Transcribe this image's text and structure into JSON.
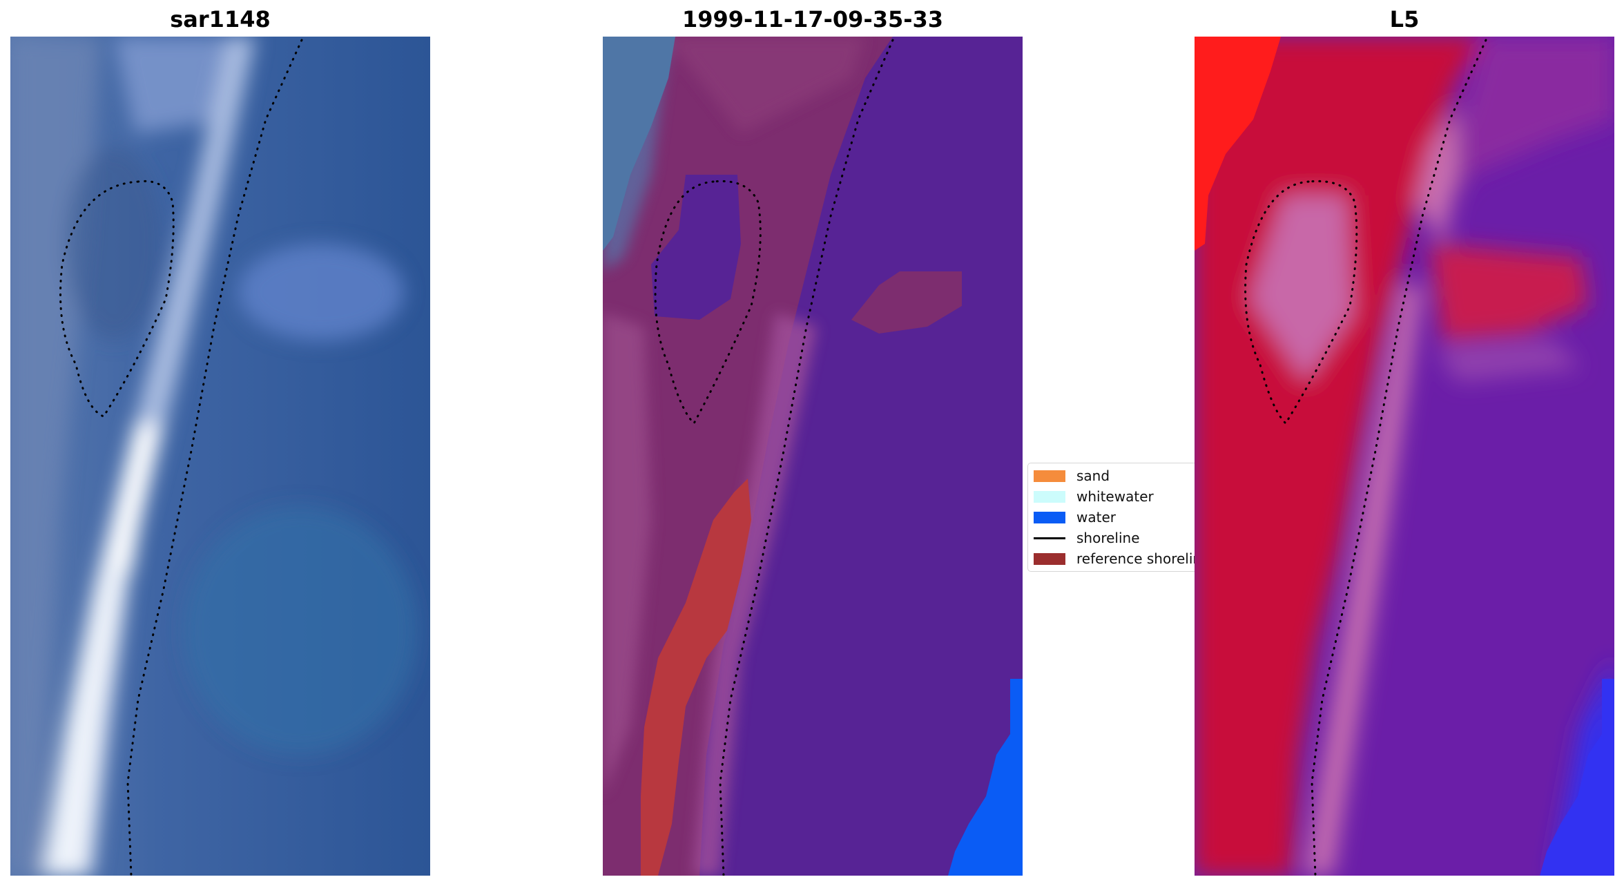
{
  "panels": [
    {
      "title": "sar1148",
      "image": "rgb-satellite-image"
    },
    {
      "title": "1999-11-17-09-35-33",
      "image": "classified-overlay-image"
    },
    {
      "title": "L5",
      "image": "index-heatmap-image"
    }
  ],
  "legend": {
    "entries": [
      {
        "label": "sand",
        "color": "#f58c3c",
        "kind": "patch"
      },
      {
        "label": "whitewater",
        "color": "#ccfcfc",
        "kind": "patch"
      },
      {
        "label": "water",
        "color": "#0a5cf5",
        "kind": "patch"
      },
      {
        "label": "shoreline",
        "color": "#000000",
        "kind": "line"
      },
      {
        "label": "reference shoreline",
        "color": "#9b2e2e",
        "kind": "patch"
      }
    ]
  },
  "colors": {
    "sar_water": "#2f5a9a",
    "sar_whitewater": "#f2f6fb",
    "class_water": "#572395",
    "class_land": "#7b2a6e",
    "class_sand": "#b8383f",
    "class_water_blue": "#0a5cf5",
    "l5_red": "#c8103a",
    "l5_purple": "#6b1ea8",
    "l5_blue": "#2a2af5"
  }
}
